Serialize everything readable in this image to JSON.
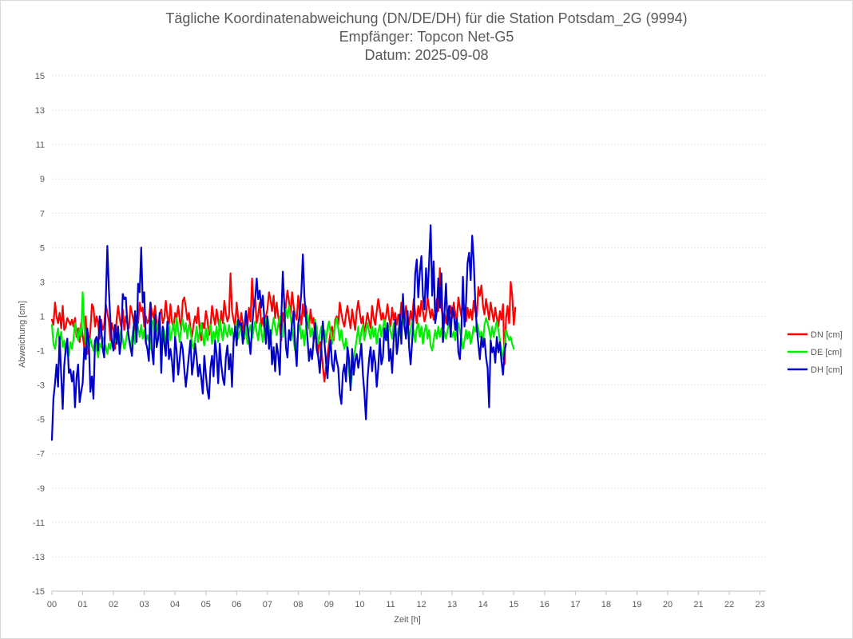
{
  "chart_data": {
    "type": "line",
    "title": [
      "Tägliche Koordinatenabweichung (DN/DE/DH) für die Station Potsdam_2G (9994)",
      "Empfänger: Topcon Net-G5",
      "Datum: 2025-09-08"
    ],
    "xlabel": "Zeit [h]",
    "ylabel": "Abweichung [cm]",
    "xlim": [
      0,
      23.25
    ],
    "ylim": [
      -15,
      15
    ],
    "grid": true,
    "legend_position": "right",
    "x_tick_labels": [
      "00",
      "01",
      "02",
      "03",
      "04",
      "05",
      "06",
      "07",
      "08",
      "09",
      "10",
      "11",
      "12",
      "13",
      "14",
      "15",
      "16",
      "17",
      "18",
      "19",
      "20",
      "21",
      "22",
      "23"
    ],
    "y_tick_labels": [
      "15",
      "13",
      "11",
      "9",
      "7",
      "5",
      "3",
      "1",
      "-1",
      "-3",
      "-5",
      "-7",
      "-9",
      "-11",
      "-13",
      "-15"
    ],
    "x_step": 0.05,
    "series": [
      {
        "name": "DN [cm]",
        "color": "#ff0000",
        "values": [
          0.8,
          0.5,
          1.8,
          1.0,
          0.6,
          1.2,
          0.3,
          1.6,
          0.2,
          0.4,
          0.9,
          0.7,
          0.5,
          0.8,
          0.4,
          0.9,
          -0.2,
          0.3,
          -0.5,
          0.6,
          -0.1,
          -0.8,
          1.0,
          -1.2,
          -0.9,
          0.2,
          1.7,
          1.5,
          0.4,
          1.0,
          0.6,
          -0.3,
          0.8,
          0.2,
          0.5,
          1.7,
          1.2,
          0.7,
          -0.4,
          0.6,
          0.2,
          -0.9,
          0.8,
          1.6,
          0.9,
          0.4,
          1.4,
          0.2,
          1.0,
          0.6,
          0.3,
          1.6,
          1.2,
          0.7,
          0.2,
          1.0,
          0.6,
          1.8,
          1.3,
          1.5,
          0.4,
          1.0,
          0.6,
          0.8,
          1.8,
          1.2,
          0.9,
          1.6,
          0.7,
          0.3,
          1.1,
          1.4,
          0.6,
          0.9,
          1.9,
          1.0,
          0.5,
          1.7,
          0.7,
          0.3,
          1.2,
          0.9,
          1.6,
          0.8,
          0.2,
          1.9,
          2.1,
          1.5,
          0.8,
          1.2,
          0.3,
          -0.2,
          0.5,
          1.0,
          0.6,
          1.5,
          0.2,
          -0.4,
          0.6,
          0.3,
          1.3,
          0.8,
          -0.1,
          0.4,
          1.6,
          1.0,
          0.5,
          1.4,
          0.8,
          0.2,
          1.3,
          0.6,
          1.9,
          1.2,
          0.7,
          1.0,
          3.5,
          1.3,
          0.8,
          0.4,
          1.8,
          0.9,
          0.3,
          1.2,
          0.6,
          -0.3,
          0.9,
          0.4,
          1.5,
          0.7,
          3.2,
          1.5,
          2.0,
          0.6,
          1.1,
          1.8,
          0.4,
          0.9,
          0.2,
          1.0,
          1.4,
          2.4,
          2.0,
          1.3,
          2.2,
          0.9,
          1.8,
          1.0,
          0.4,
          -0.4,
          1.2,
          0.6,
          1.7,
          2.5,
          1.9,
          1.0,
          2.4,
          1.6,
          1.1,
          0.8,
          2.2,
          1.2,
          0.5,
          1.7,
          1.0,
          1.6,
          0.8,
          0.3,
          1.4,
          0.6,
          0.9,
          -0.3,
          0.4,
          -1.2,
          -0.5,
          -0.8,
          -1.9,
          -2.8,
          -2.0,
          -1.3,
          -0.6,
          0.1,
          0.4,
          -0.4,
          0.8,
          1.0,
          0.5,
          1.8,
          1.2,
          0.7,
          0.4,
          1.1,
          1.6,
          0.9,
          0.3,
          1.4,
          0.8,
          0.2,
          1.3,
          1.9,
          1.2,
          0.6,
          1.0,
          -0.2,
          0.6,
          1.2,
          0.7,
          0.3,
          1.6,
          0.9,
          0.5,
          1.3,
          2.0,
          1.4,
          0.8,
          1.2,
          0.6,
          1.0,
          1.7,
          0.9,
          0.4,
          1.5,
          0.8,
          1.2,
          0.5,
          1.1,
          0.7,
          1.8,
          0.9,
          0.4,
          1.6,
          1.0,
          0.5,
          1.3,
          0.8,
          2.0,
          1.2,
          0.6,
          1.6,
          1.0,
          1.9,
          1.3,
          0.7,
          1.1,
          2.1,
          1.5,
          0.9,
          1.4,
          0.8,
          1.2,
          2.0,
          1.3,
          3.8,
          1.5,
          0.9,
          1.2,
          0.6,
          1.3,
          0.8,
          1.6,
          0.9,
          1.8,
          1.2,
          0.7,
          2.1,
          1.5,
          1.0,
          1.8,
          1.2,
          0.7,
          1.5,
          0.9,
          1.4,
          0.8,
          1.9,
          1.3,
          1.0,
          2.7,
          2.2,
          2.8,
          1.6,
          1.1,
          2.0,
          1.4,
          0.8,
          1.8,
          1.2,
          0.7,
          1.5,
          0.9,
          0.4,
          1.3,
          0.8,
          1.7,
          -1.8,
          0.9,
          1.6,
          0.6,
          3.0,
          2.2,
          0.5,
          1.5
        ]
      },
      {
        "name": "DE [cm]",
        "color": "#00ee00",
        "values": [
          0.5,
          -0.6,
          -0.9,
          -0.2,
          0.3,
          -0.5,
          0.1,
          -0.8,
          -0.4,
          -1.2,
          -0.7,
          -1.3,
          -0.5,
          -0.9,
          -0.3,
          0.6,
          0.1,
          -0.4,
          0.3,
          -0.2,
          2.4,
          0.4,
          -0.6,
          -0.1,
          -0.8,
          -0.3,
          -0.7,
          -1.0,
          -0.4,
          -0.9,
          -1.4,
          -0.6,
          -0.8,
          -0.2,
          -0.5,
          -0.8,
          -1.2,
          -0.6,
          -0.9,
          -0.3,
          -0.7,
          -0.4,
          -0.1,
          -0.6,
          -0.3,
          0.2,
          -0.4,
          -0.9,
          -0.5,
          0.1,
          -0.2,
          -0.8,
          -0.3,
          0.4,
          -0.6,
          0.9,
          0.3,
          -0.2,
          0.5,
          -0.3,
          0.2,
          -0.6,
          -0.1,
          -0.4,
          -0.9,
          0.6,
          0.8,
          -0.3,
          0.2,
          0.7,
          0.1,
          -0.5,
          0.4,
          0.2,
          -0.7,
          -0.2,
          0.5,
          -0.4,
          0.1,
          0.6,
          -0.3,
          0.9,
          0.2,
          -0.5,
          0.4,
          0.8,
          0.1,
          0.6,
          -0.3,
          0.5,
          0.2,
          -0.6,
          -0.9,
          -0.3,
          0.4,
          -0.5,
          0.1,
          0.6,
          -0.2,
          -0.7,
          0.3,
          -0.4,
          0.2,
          0.5,
          -0.6,
          0.1,
          -0.3,
          0.4,
          -0.5,
          0.8,
          0.2,
          -0.4,
          0.6,
          0.1,
          -0.2,
          0.5,
          -0.1,
          0.3,
          -0.4,
          0.2,
          0.7,
          -0.3,
          0.1,
          0.6,
          -0.5,
          -0.2,
          0.4,
          -0.6,
          0.1,
          0.5,
          -0.3,
          0.2,
          0.7,
          0.1,
          -0.4,
          0.6,
          0.2,
          -0.5,
          0.3,
          0.8,
          1.0,
          0.4,
          -0.3,
          0.2,
          0.9,
          0.4,
          -0.1,
          0.5,
          1.0,
          0.3,
          -0.2,
          0.6,
          1.4,
          0.9,
          1.6,
          1.0,
          0.3,
          -0.4,
          -1.0,
          -0.6,
          0.1,
          0.5,
          -0.3,
          0.2,
          -0.7,
          0.4,
          1.1,
          0.6,
          -0.2,
          0.3,
          -0.5,
          0.8,
          0.2,
          -0.6,
          -0.1,
          0.4,
          -0.3,
          0.2,
          -0.5,
          0.3,
          0.7,
          0.1,
          -0.6,
          -0.2,
          0.5,
          0.9,
          0.3,
          -0.4,
          0.2,
          -0.5,
          -0.9,
          -0.3,
          -1.1,
          -2.2,
          -3.1,
          -2.4,
          -1.5,
          -0.9,
          -0.3,
          0.4,
          -0.6,
          0.1,
          0.5,
          -0.4,
          0.2,
          0.6,
          0.1,
          -0.3,
          0.4,
          -0.2,
          0.3,
          -0.6,
          0.1,
          0.5,
          -0.2,
          0.3,
          0.8,
          0.2,
          -0.4,
          0.5,
          0.1,
          -0.3,
          0.6,
          0.2,
          -0.5,
          0.3,
          -0.1,
          0.4,
          0.9,
          0.3,
          -0.2,
          0.5,
          -0.4,
          0.2,
          0.7,
          0.1,
          -0.5,
          0.3,
          0.6,
          -0.2,
          0.4,
          -0.6,
          0.1,
          0.5,
          -0.3,
          0.2,
          -0.7,
          -1.0,
          -0.4,
          0.2,
          -0.3,
          0.4,
          -0.2,
          0.3,
          -0.5,
          0.1,
          -0.3,
          0.2,
          0.6,
          0.3,
          -0.2,
          0.1,
          -0.4,
          0.3,
          0.6,
          0.1,
          -0.3,
          -0.9,
          -0.4,
          0.2,
          -0.3,
          0.1,
          -0.6,
          -0.2,
          0.4,
          0.1,
          0.6,
          0.3,
          -0.2,
          0.1,
          -0.5,
          0.5,
          0.9,
          0.6,
          0.2,
          -0.3,
          0.4,
          -0.2,
          0.3,
          0.7,
          0.2,
          -0.4,
          -1.0,
          -1.5,
          -0.6,
          0.2,
          -0.1,
          -0.4,
          -0.2,
          -0.6,
          -0.9
        ]
      },
      {
        "name": "DH [cm]",
        "color": "#0000cc",
        "values": [
          -6.2,
          -3.8,
          -2.9,
          -1.8,
          -3.1,
          -0.2,
          -2.4,
          -4.4,
          -1.9,
          -0.9,
          -0.3,
          -2.3,
          -2.1,
          -2.8,
          -2.2,
          -4.3,
          -2.6,
          -1.8,
          -4.0,
          -3.4,
          -2.9,
          -0.8,
          -1.5,
          0.3,
          -0.6,
          -3.4,
          -2.5,
          -3.8,
          -0.4,
          -0.2,
          -1.0,
          1.0,
          0.3,
          -0.9,
          -1.4,
          2.0,
          5.1,
          2.6,
          0.7,
          -0.5,
          -1.0,
          0.5,
          -0.6,
          0.4,
          -1.2,
          -0.4,
          2.3,
          2.0,
          2.1,
          0.6,
          -0.3,
          -0.8,
          -1.3,
          0.2,
          1.3,
          -0.5,
          2.9,
          2.4,
          5.0,
          1.8,
          2.4,
          -0.5,
          -0.9,
          -1.6,
          1.8,
          -1.0,
          -1.8,
          1.1,
          -0.8,
          -0.3,
          1.2,
          -2.3,
          0.4,
          -0.6,
          -1.3,
          0.7,
          -1.5,
          -0.9,
          -1.6,
          -2.8,
          -0.2,
          -1.0,
          -2.4,
          -1.5,
          -0.5,
          -0.9,
          -2.1,
          -3.1,
          -2.2,
          -1.3,
          -0.4,
          -2.4,
          -1.7,
          -0.6,
          -1.4,
          -2.5,
          -1.8,
          -2.6,
          -3.5,
          -1.3,
          -2.4,
          -3.3,
          -3.8,
          -2.0,
          -1.3,
          -2.5,
          -0.4,
          -1.2,
          -2.9,
          -0.6,
          -1.8,
          -2.6,
          -3.0,
          -1.4,
          -0.7,
          -2.1,
          -1.2,
          -3.1,
          -0.5,
          0.4,
          -0.7,
          0.8,
          0.5,
          0.6,
          -0.6,
          0.2,
          1.3,
          0.5,
          -0.3,
          -1.2,
          0.3,
          1.5,
          2.0,
          3.2,
          2.0,
          2.5,
          1.5,
          2.2,
          0.8,
          -0.6,
          1.0,
          -0.9,
          0.2,
          -1.8,
          -0.8,
          -2.2,
          -0.6,
          -1.2,
          -2.4,
          0.9,
          3.6,
          1.5,
          -0.8,
          -1.4,
          0.2,
          -0.4,
          0.6,
          1.3,
          -0.7,
          -1.9,
          0.5,
          1.2,
          2.4,
          4.6,
          2.2,
          0.9,
          -0.3,
          -1.6,
          -0.9,
          -1.5,
          -0.4,
          0.6,
          -0.9,
          -1.4,
          -2.3,
          -0.8,
          0.7,
          -0.5,
          -1.6,
          -2.6,
          -1.2,
          -0.4,
          -1.8,
          -2.2,
          -1.0,
          -1.6,
          -2.0,
          -3.5,
          -4.1,
          -2.3,
          -1.8,
          -2.8,
          -0.8,
          -1.5,
          -3.3,
          -0.9,
          -2.4,
          -1.6,
          -1.2,
          -2.0,
          -1.4,
          -0.6,
          -2.4,
          -3.5,
          -5.0,
          -2.7,
          -1.5,
          -0.8,
          -2.2,
          -1.0,
          -1.7,
          -3.1,
          -2.0,
          -0.3,
          -1.8,
          -1.4,
          0.3,
          -0.4,
          0.6,
          -1.6,
          -0.9,
          -2.3,
          -0.4,
          0.8,
          -1.2,
          -0.5,
          1.1,
          -0.6,
          2.3,
          0.5,
          -0.3,
          1.3,
          -0.8,
          -1.8,
          -0.5,
          1.1,
          3.5,
          4.3,
          2.1,
          3.6,
          4.5,
          2.2,
          1.4,
          3.8,
          2.1,
          4.1,
          6.3,
          2.2,
          4.2,
          0.6,
          1.3,
          3.2,
          1.5,
          3.5,
          -0.5,
          1.2,
          2.9,
          0.5,
          1.6,
          -0.2,
          1.5,
          1.2,
          0.2,
          0.9,
          -1.1,
          -1.5,
          0.2,
          3.3,
          0.4,
          1.8,
          4.1,
          4.7,
          3.1,
          5.7,
          4.3,
          1.7,
          0.3,
          -0.6,
          -1.5,
          -0.2,
          -0.8,
          -0.3,
          -1.4,
          -2.0,
          -4.3,
          -0.4,
          -1.1,
          -0.8,
          -1.7,
          -0.2,
          -1.1,
          -0.5,
          -1.6,
          -2.4,
          -1.0,
          -0.6
        ]
      }
    ]
  }
}
